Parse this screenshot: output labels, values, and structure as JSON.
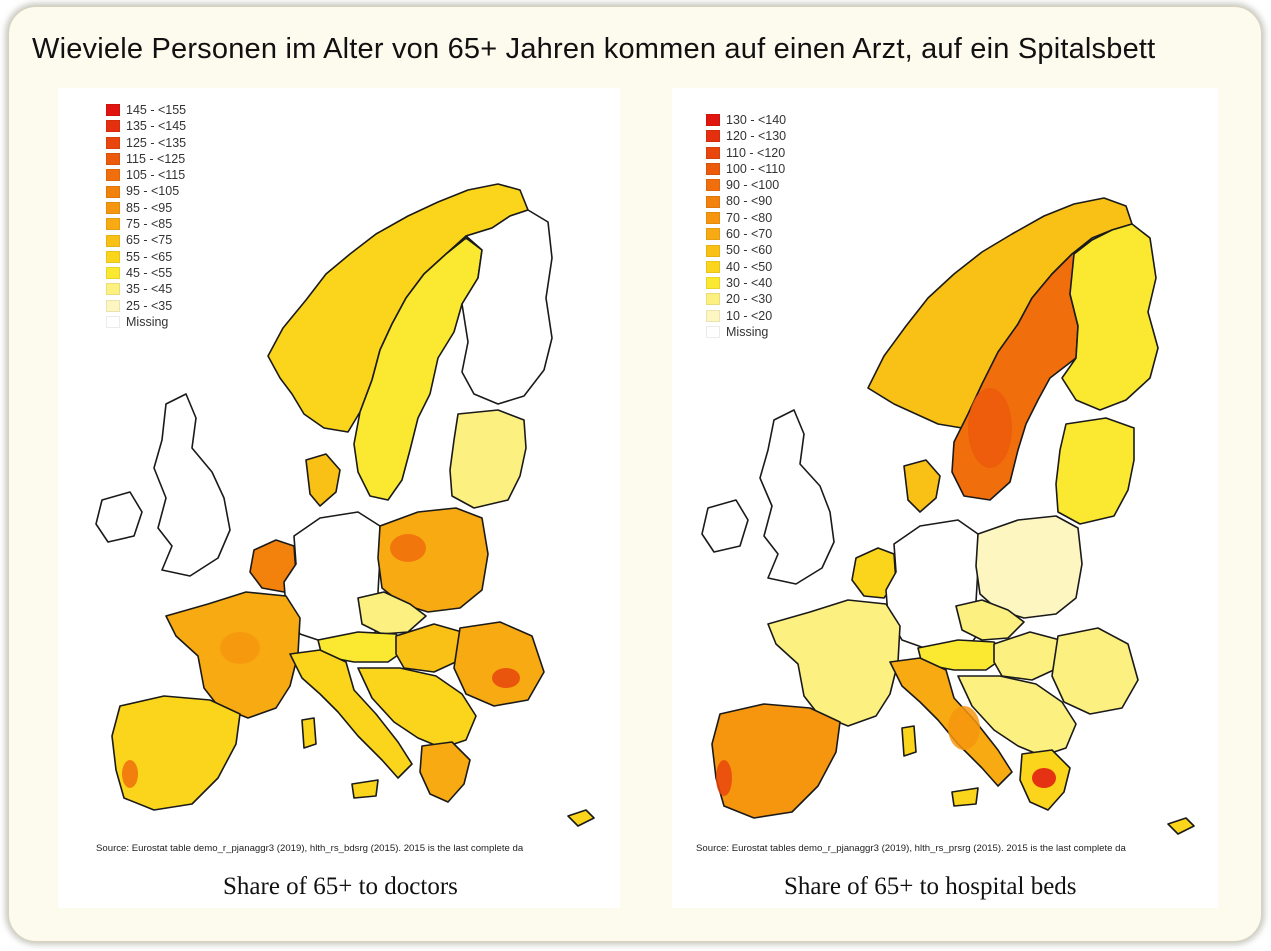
{
  "slide": {
    "title": "Wieviele Personen im Alter von 65+ Jahren kommen auf einen Arzt, auf ein Spitalsbett"
  },
  "maps": {
    "left": {
      "caption": "Share of 65+ to doctors",
      "source": "Source: Eurostat table demo_r_pjanaggr3 (2019), hlth_rs_bdsrg (2015). 2015 is the last complete da",
      "legend": [
        {
          "label": "145 - <155",
          "color": "#e01510"
        },
        {
          "label": "135 - <145",
          "color": "#e4300e"
        },
        {
          "label": "125 - <135",
          "color": "#e8460d"
        },
        {
          "label": "115 - <125",
          "color": "#ec5a0c"
        },
        {
          "label": "105 - <115",
          "color": "#f06e0c"
        },
        {
          "label": "95 - <105",
          "color": "#f3820d"
        },
        {
          "label": "85 - <95",
          "color": "#f6960f"
        },
        {
          "label": "75 - <85",
          "color": "#f8aa12"
        },
        {
          "label": "65 - <75",
          "color": "#f9c016"
        },
        {
          "label": "55 - <65",
          "color": "#fad51c"
        },
        {
          "label": "45 - <55",
          "color": "#fbe830"
        },
        {
          "label": "35 - <45",
          "color": "#fcf080"
        },
        {
          "label": "25 - <35",
          "color": "#fdf6c0"
        },
        {
          "label": "Missing",
          "color": "#ffffff"
        }
      ],
      "regions": {
        "norway": "#fad51c",
        "sweden": "#fbe830",
        "finland": "#ffffff",
        "denmark": "#f9c016",
        "baltics": "#fcf080",
        "uk_ireland": "#ffffff",
        "benelux": "#f3820d",
        "germany": "#ffffff",
        "poland": "#f8aa12",
        "czech": "#fcf080",
        "austria": "#fbe830",
        "hungary": "#f9c016",
        "romania": "#f8aa12",
        "france": "#f8aa12",
        "iberia": "#fad51c",
        "italy": "#fad51c",
        "balkans": "#fad51c",
        "greece": "#f8aa12",
        "islands": "#fad51c"
      },
      "hotspots": {
        "poland": "#f06e0c",
        "romania": "#e8460d",
        "portugal": "#f06e0c",
        "france": "#f6960f"
      }
    },
    "right": {
      "caption": "Share of 65+ to hospital beds",
      "source": "Source: Eurostat tables demo_r_pjanaggr3 (2019), hlth_rs_prsrg (2015). 2015 is the last complete da",
      "legend": [
        {
          "label": "130 - <140",
          "color": "#e01510"
        },
        {
          "label": "120 - <130",
          "color": "#e4300e"
        },
        {
          "label": "110 - <120",
          "color": "#e8460d"
        },
        {
          "label": "100 - <110",
          "color": "#ec5a0c"
        },
        {
          "label": "90 - <100",
          "color": "#f06e0c"
        },
        {
          "label": "80 - <90",
          "color": "#f3820d"
        },
        {
          "label": "70 - <80",
          "color": "#f6960f"
        },
        {
          "label": "60 - <70",
          "color": "#f8aa12"
        },
        {
          "label": "50 - <60",
          "color": "#f9c016"
        },
        {
          "label": "40 - <50",
          "color": "#fad51c"
        },
        {
          "label": "30 - <40",
          "color": "#fbe830"
        },
        {
          "label": "20 - <30",
          "color": "#fcf080"
        },
        {
          "label": "10 - <20",
          "color": "#fdf6c0"
        },
        {
          "label": "Missing",
          "color": "#ffffff"
        }
      ],
      "regions": {
        "norway": "#f9c016",
        "sweden": "#f06e0c",
        "finland": "#fbe830",
        "denmark": "#f9c016",
        "baltics": "#fbe830",
        "uk_ireland": "#ffffff",
        "benelux": "#fad51c",
        "germany": "#ffffff",
        "poland": "#fdf6c0",
        "czech": "#fcf080",
        "austria": "#fbe830",
        "hungary": "#fcf080",
        "romania": "#fcf080",
        "france": "#fcf080",
        "iberia": "#f6960f",
        "italy": "#f8aa12",
        "balkans": "#fcf080",
        "greece": "#fad51c",
        "islands": "#fad51c"
      },
      "hotspots": {
        "sweden": "#ec5a0c",
        "portugal": "#e8460d",
        "greece": "#e01510",
        "italy": "#f6960f"
      }
    }
  }
}
